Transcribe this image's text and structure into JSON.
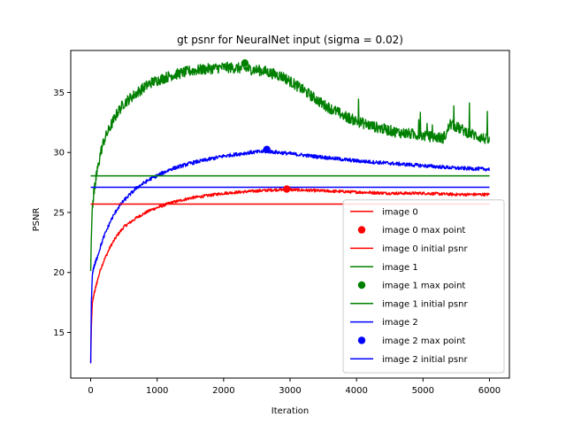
{
  "chart_data": {
    "type": "line",
    "title": "gt psnr for NeuralNet input (sigma = 0.02)",
    "xlabel": "Iteration",
    "ylabel": "PSNR",
    "xlim": [
      -300,
      6300
    ],
    "ylim": [
      11.2,
      38.5
    ],
    "xticks": [
      0,
      1000,
      2000,
      3000,
      4000,
      5000,
      6000
    ],
    "yticks": [
      15,
      20,
      25,
      30,
      35
    ],
    "grid": false,
    "legend_position": "lower-right",
    "colors": {
      "image0": "#ff0000",
      "image1": "#008000",
      "image2": "#0000ff"
    },
    "series": [
      {
        "name": "image 0",
        "kind": "line",
        "color": "#ff0000",
        "x": [
          0,
          10,
          25,
          50,
          100,
          150,
          200,
          300,
          400,
          500,
          700,
          900,
          1200,
          1500,
          2000,
          2500,
          2800,
          3000,
          3500,
          4000,
          4500,
          5000,
          5500,
          6000
        ],
        "y": [
          12.5,
          15.5,
          17.5,
          18.2,
          19.3,
          20.3,
          21.0,
          22.2,
          23.1,
          23.8,
          24.6,
          25.2,
          25.8,
          26.2,
          26.6,
          26.8,
          26.9,
          26.9,
          26.8,
          26.7,
          26.6,
          26.6,
          26.5,
          26.5
        ],
        "noise": 0.12
      },
      {
        "name": "image 0 max point",
        "kind": "point",
        "color": "#ff0000",
        "x": 2950,
        "y": 26.95
      },
      {
        "name": "image 0 initial psnr",
        "kind": "hline",
        "color": "#ff0000",
        "x": [
          0,
          6000
        ],
        "y": 25.7
      },
      {
        "name": "image 1",
        "kind": "line",
        "color": "#008000",
        "x": [
          0,
          10,
          25,
          50,
          100,
          150,
          200,
          300,
          400,
          500,
          700,
          900,
          1200,
          1500,
          2000,
          2300,
          2600,
          2900,
          3200,
          3500,
          3800,
          4000,
          4300,
          4600,
          5000,
          5300,
          5360,
          5400,
          5700,
          6000
        ],
        "y": [
          20.2,
          23.0,
          25.5,
          26.8,
          28.5,
          30.0,
          31.0,
          32.2,
          33.3,
          34.1,
          35.0,
          35.8,
          36.4,
          36.8,
          37.1,
          37.0,
          36.8,
          36.3,
          35.2,
          34.0,
          33.1,
          32.6,
          32.1,
          31.7,
          31.4,
          31.2,
          31.6,
          32.4,
          31.6,
          31.0
        ],
        "noise": 0.45
      },
      {
        "name": "image 1 max point",
        "kind": "point",
        "color": "#008000",
        "x": 2320,
        "y": 37.45
      },
      {
        "name": "image 1 initial psnr",
        "kind": "hline",
        "color": "#008000",
        "x": [
          0,
          6000
        ],
        "y": 28.05
      },
      {
        "name": "image 2",
        "kind": "line",
        "color": "#0000ff",
        "x": [
          0,
          10,
          25,
          50,
          100,
          150,
          200,
          300,
          400,
          500,
          700,
          900,
          1200,
          1500,
          2000,
          2400,
          2650,
          3000,
          3500,
          4000,
          4500,
          5000,
          5500,
          6000
        ],
        "y": [
          12.4,
          17.5,
          19.8,
          20.5,
          21.3,
          22.2,
          23.0,
          24.3,
          25.3,
          26.0,
          27.1,
          27.8,
          28.6,
          29.1,
          29.7,
          30.0,
          30.1,
          29.9,
          29.6,
          29.3,
          29.1,
          28.9,
          28.7,
          28.6
        ],
        "noise": 0.15
      },
      {
        "name": "image 2 max point",
        "kind": "point",
        "color": "#0000ff",
        "x": 2650,
        "y": 30.25
      },
      {
        "name": "image 2 initial psnr",
        "kind": "hline",
        "color": "#0000ff",
        "x": [
          0,
          6000
        ],
        "y": 27.1
      }
    ]
  }
}
